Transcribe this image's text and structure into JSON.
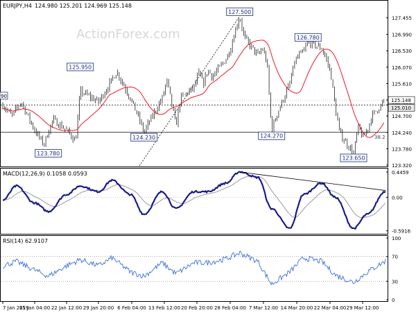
{
  "chart_data": [
    {
      "type": "candlestick",
      "title": "EURJPY,H4",
      "ohlc_readout": "124.980 125.201 124.969 125.148",
      "watermark": "ActionForex.com",
      "ylim": [
        123.32,
        127.8
      ],
      "y_ticks": [
        "127.455",
        "126.990",
        "126.530",
        "126.070",
        "125.610",
        "125.148",
        "125.010",
        "124.700",
        "124.240",
        "123.780",
        "123.320"
      ],
      "current_price": "125.148",
      "current_price_label": "125.148",
      "ref_price_label": "125.010",
      "x_ticks": [
        "7 Jan 2019",
        "15 Jan 04:00",
        "22 Jan 12:00",
        "29 Jan 20:00",
        "6 Feb 04:00",
        "13 Feb 12:00",
        "20 Feb 20:00",
        "28 Feb 04:00",
        "7 Mar 12:00",
        "14 Mar 20:00",
        "22 Mar 04:00",
        "29 Mar 12:00"
      ],
      "annotations": [
        {
          "label": "127.500",
          "x": "28 Feb",
          "y": 127.5
        },
        {
          "label": "126.780",
          "x": "15 Mar",
          "y": 126.78
        },
        {
          "label": "125.950",
          "x": "24 Jan",
          "y": 125.95
        },
        {
          "label": "124.230",
          "x": "7 Feb",
          "y": 124.23
        },
        {
          "label": "124.270",
          "x": "7 Mar",
          "y": 124.27
        },
        {
          "label": "123.780",
          "x": "17 Jan",
          "y": 123.78
        },
        {
          "label": "123.650",
          "x": "25 Mar",
          "y": 123.65
        }
      ],
      "left_edge_label": "90",
      "fib_label": "38.2",
      "horizontal_levels": [
        125.01,
        124.24
      ],
      "trend_line": {
        "from": {
          "x": "6 Feb",
          "y": 123.3
        },
        "to": {
          "x": "28 Feb",
          "y": 127.5
        }
      },
      "moving_average_color": "#e8192c",
      "candle_color": "#000000",
      "price_path": [
        [
          "7 Jan",
          125.0
        ],
        [
          "9 Jan",
          124.7
        ],
        [
          "11 Jan",
          125.1
        ],
        [
          "14 Jan",
          124.3
        ],
        [
          "16 Jan",
          123.9
        ],
        [
          "18 Jan",
          124.6
        ],
        [
          "21 Jan",
          124.3
        ],
        [
          "23 Jan",
          124.0
        ],
        [
          "24 Jan",
          125.4
        ],
        [
          "28 Jan",
          125.1
        ],
        [
          "30 Jan",
          125.5
        ],
        [
          "1 Feb",
          125.95
        ],
        [
          "4 Feb",
          125.2
        ],
        [
          "6 Feb",
          124.6
        ],
        [
          "7 Feb",
          124.23
        ],
        [
          "8 Feb",
          124.5
        ],
        [
          "11 Feb",
          125.2
        ],
        [
          "12 Feb",
          125.7
        ],
        [
          "13 Feb",
          125.1
        ],
        [
          "14 Feb",
          124.4
        ],
        [
          "15 Feb",
          125.2
        ],
        [
          "18 Feb",
          125.5
        ],
        [
          "19 Feb",
          125.9
        ],
        [
          "20 Feb",
          125.6
        ],
        [
          "21 Feb",
          126.0
        ],
        [
          "22 Feb",
          125.8
        ],
        [
          "25 Feb",
          126.3
        ],
        [
          "26 Feb",
          126.6
        ],
        [
          "27 Feb",
          127.1
        ],
        [
          "28 Feb",
          127.5
        ],
        [
          "1 Mar",
          126.9
        ],
        [
          "4 Mar",
          126.4
        ],
        [
          "5 Mar",
          126.6
        ],
        [
          "6 Mar",
          126.2
        ],
        [
          "7 Mar",
          124.27
        ],
        [
          "8 Mar",
          124.7
        ],
        [
          "11 Mar",
          125.6
        ],
        [
          "12 Mar",
          126.2
        ],
        [
          "13 Mar",
          126.4
        ],
        [
          "14 Mar",
          126.5
        ],
        [
          "15 Mar",
          126.78
        ],
        [
          "18 Mar",
          126.6
        ],
        [
          "19 Mar",
          126.3
        ],
        [
          "20 Mar",
          125.9
        ],
        [
          "21 Mar",
          124.9
        ],
        [
          "22 Mar",
          124.2
        ],
        [
          "25 Mar",
          123.65
        ],
        [
          "26 Mar",
          124.4
        ],
        [
          "27 Mar",
          124.1
        ],
        [
          "28 Mar",
          124.3
        ],
        [
          "29 Mar",
          124.7
        ],
        [
          "1 Apr",
          125.148
        ]
      ]
    },
    {
      "type": "line",
      "title": "MACD(12,26,9) 0.1058 0.0593",
      "ylim": [
        -0.62,
        0.47
      ],
      "y_ticks": [
        "0.4459",
        "0.00",
        "-0.5916"
      ],
      "trend_line": {
        "from": {
          "x": "28 Feb",
          "y": 0.4459
        },
        "to": {
          "x": "1 Apr",
          "y": 0.12
        }
      },
      "macd_color": "#1a1a8c",
      "signal_color": "#9a9a9a",
      "macd_path": [
        [
          "7 Jan",
          -0.05
        ],
        [
          "10 Jan",
          0.2
        ],
        [
          "14 Jan",
          -0.1
        ],
        [
          "17 Jan",
          -0.25
        ],
        [
          "21 Jan",
          0.05
        ],
        [
          "24 Jan",
          0.2
        ],
        [
          "28 Jan",
          0.1
        ],
        [
          "31 Jan",
          0.3
        ],
        [
          "4 Feb",
          0.05
        ],
        [
          "7 Feb",
          -0.3
        ],
        [
          "11 Feb",
          0.1
        ],
        [
          "14 Feb",
          -0.2
        ],
        [
          "18 Feb",
          0.1
        ],
        [
          "21 Feb",
          0.1
        ],
        [
          "25 Feb",
          0.25
        ],
        [
          "28 Feb",
          0.45
        ],
        [
          "4 Mar",
          0.35
        ],
        [
          "7 Mar",
          -0.2
        ],
        [
          "11 Mar",
          -0.55
        ],
        [
          "14 Mar",
          0.05
        ],
        [
          "18 Mar",
          0.25
        ],
        [
          "21 Mar",
          0.0
        ],
        [
          "25 Mar",
          -0.55
        ],
        [
          "28 Mar",
          -0.3
        ],
        [
          "1 Apr",
          0.1058
        ]
      ]
    },
    {
      "type": "line",
      "title": "RSI(14) 62.9107",
      "ylim": [
        0,
        100
      ],
      "y_ticks": [
        "100",
        "70",
        "30",
        "0"
      ],
      "dotted_levels": [
        70,
        30
      ],
      "rsi_color": "#3a6fd8",
      "rsi_path": [
        [
          "7 Jan",
          55
        ],
        [
          "10 Jan",
          62
        ],
        [
          "14 Jan",
          48
        ],
        [
          "17 Jan",
          38
        ],
        [
          "21 Jan",
          55
        ],
        [
          "24 Jan",
          65
        ],
        [
          "28 Jan",
          55
        ],
        [
          "31 Jan",
          68
        ],
        [
          "4 Feb",
          45
        ],
        [
          "7 Feb",
          38
        ],
        [
          "11 Feb",
          60
        ],
        [
          "14 Feb",
          42
        ],
        [
          "18 Feb",
          60
        ],
        [
          "21 Feb",
          60
        ],
        [
          "25 Feb",
          66
        ],
        [
          "28 Feb",
          76
        ],
        [
          "4 Mar",
          62
        ],
        [
          "7 Mar",
          25
        ],
        [
          "11 Mar",
          45
        ],
        [
          "14 Mar",
          68
        ],
        [
          "18 Mar",
          62
        ],
        [
          "21 Mar",
          40
        ],
        [
          "25 Mar",
          28
        ],
        [
          "28 Mar",
          45
        ],
        [
          "1 Apr",
          62.9107
        ]
      ]
    }
  ]
}
